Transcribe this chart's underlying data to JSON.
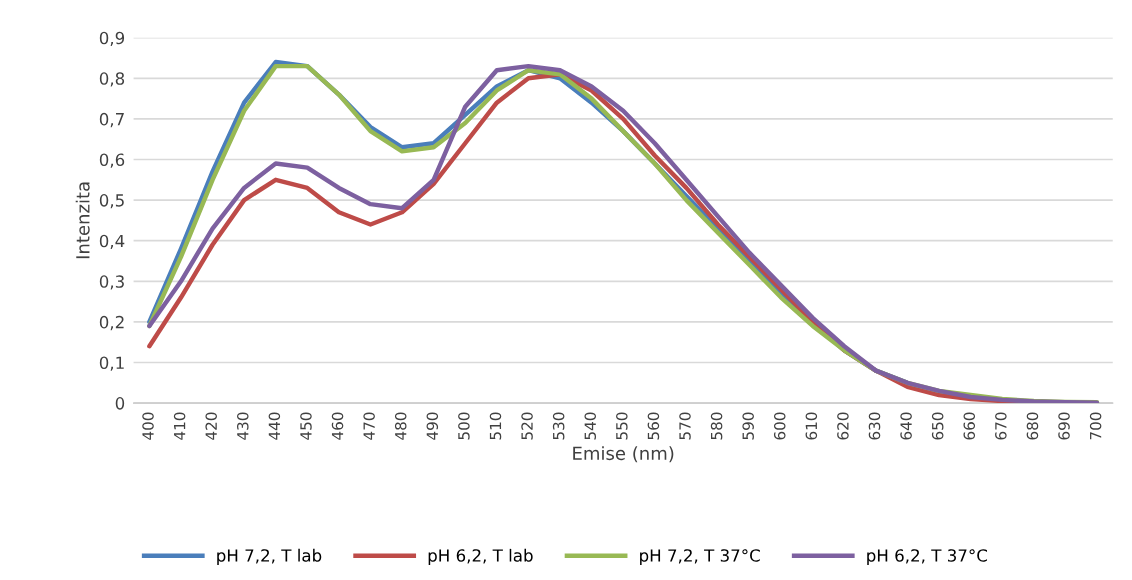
{
  "chart_data": {
    "type": "line",
    "xlabel": "Emise (nm)",
    "ylabel": "Intenzita",
    "categories": [
      "400",
      "410",
      "420",
      "430",
      "440",
      "450",
      "460",
      "470",
      "480",
      "490",
      "500",
      "510",
      "520",
      "530",
      "540",
      "550",
      "560",
      "570",
      "580",
      "590",
      "600",
      "610",
      "620",
      "630",
      "640",
      "650",
      "660",
      "670",
      "680",
      "690",
      "700"
    ],
    "series": [
      {
        "name": "pH 7,2, T lab",
        "color": "#4a7ebb",
        "values": [
          0.2,
          0.38,
          0.57,
          0.74,
          0.84,
          0.83,
          0.76,
          0.68,
          0.63,
          0.64,
          0.71,
          0.78,
          0.82,
          0.8,
          0.74,
          0.67,
          0.59,
          0.51,
          0.43,
          0.35,
          0.27,
          0.2,
          0.13,
          0.08,
          0.05,
          null,
          null,
          null,
          null,
          null,
          null
        ]
      },
      {
        "name": "pH 6,2, T lab",
        "color": "#be4b48",
        "values": [
          0.14,
          0.26,
          0.39,
          0.5,
          0.55,
          0.53,
          0.47,
          0.44,
          0.47,
          0.54,
          0.64,
          0.74,
          0.8,
          0.81,
          0.77,
          0.7,
          0.61,
          0.53,
          0.44,
          0.36,
          0.28,
          0.2,
          0.13,
          0.08,
          0.04,
          0.02,
          0.01,
          0.005,
          0.003,
          null,
          null
        ]
      },
      {
        "name": "pH 7,2, T 37°C",
        "color": "#98b954",
        "values": [
          0.19,
          0.36,
          0.55,
          0.72,
          0.83,
          0.83,
          0.76,
          0.67,
          0.62,
          0.63,
          0.69,
          0.77,
          0.82,
          0.81,
          0.75,
          0.67,
          0.59,
          0.5,
          0.42,
          0.34,
          0.26,
          0.19,
          0.13,
          0.08,
          0.05,
          0.03,
          0.02,
          0.01,
          0.005,
          0.003,
          0.002
        ]
      },
      {
        "name": "pH 6,2, T 37°C",
        "color": "#7d60a0",
        "values": [
          0.19,
          0.3,
          0.43,
          0.53,
          0.59,
          0.58,
          0.53,
          0.49,
          0.48,
          0.55,
          0.73,
          0.82,
          0.83,
          0.82,
          0.78,
          0.72,
          0.64,
          0.55,
          0.46,
          0.37,
          0.29,
          0.21,
          0.14,
          0.08,
          0.05,
          0.03,
          0.015,
          0.008,
          0.004,
          0.002,
          0.001
        ]
      }
    ],
    "ylim": [
      0,
      0.9
    ],
    "yticks": [
      0,
      {
        "value": 0.1,
        "label": "0,1"
      },
      {
        "value": 0.2,
        "label": "0,2"
      },
      {
        "value": 0.3,
        "label": "0,3"
      },
      {
        "value": 0.4,
        "label": "0,4"
      },
      {
        "value": 0.5,
        "label": "0,5"
      },
      {
        "value": 0.6,
        "label": "0,6"
      },
      {
        "value": 0.7,
        "label": "0,7"
      },
      {
        "value": 0.8,
        "label": "0,8"
      },
      {
        "value": 0.9,
        "label": "0,9"
      }
    ],
    "grid": "y",
    "legend": "bottom",
    "marker": "none",
    "line_style": "solid"
  }
}
